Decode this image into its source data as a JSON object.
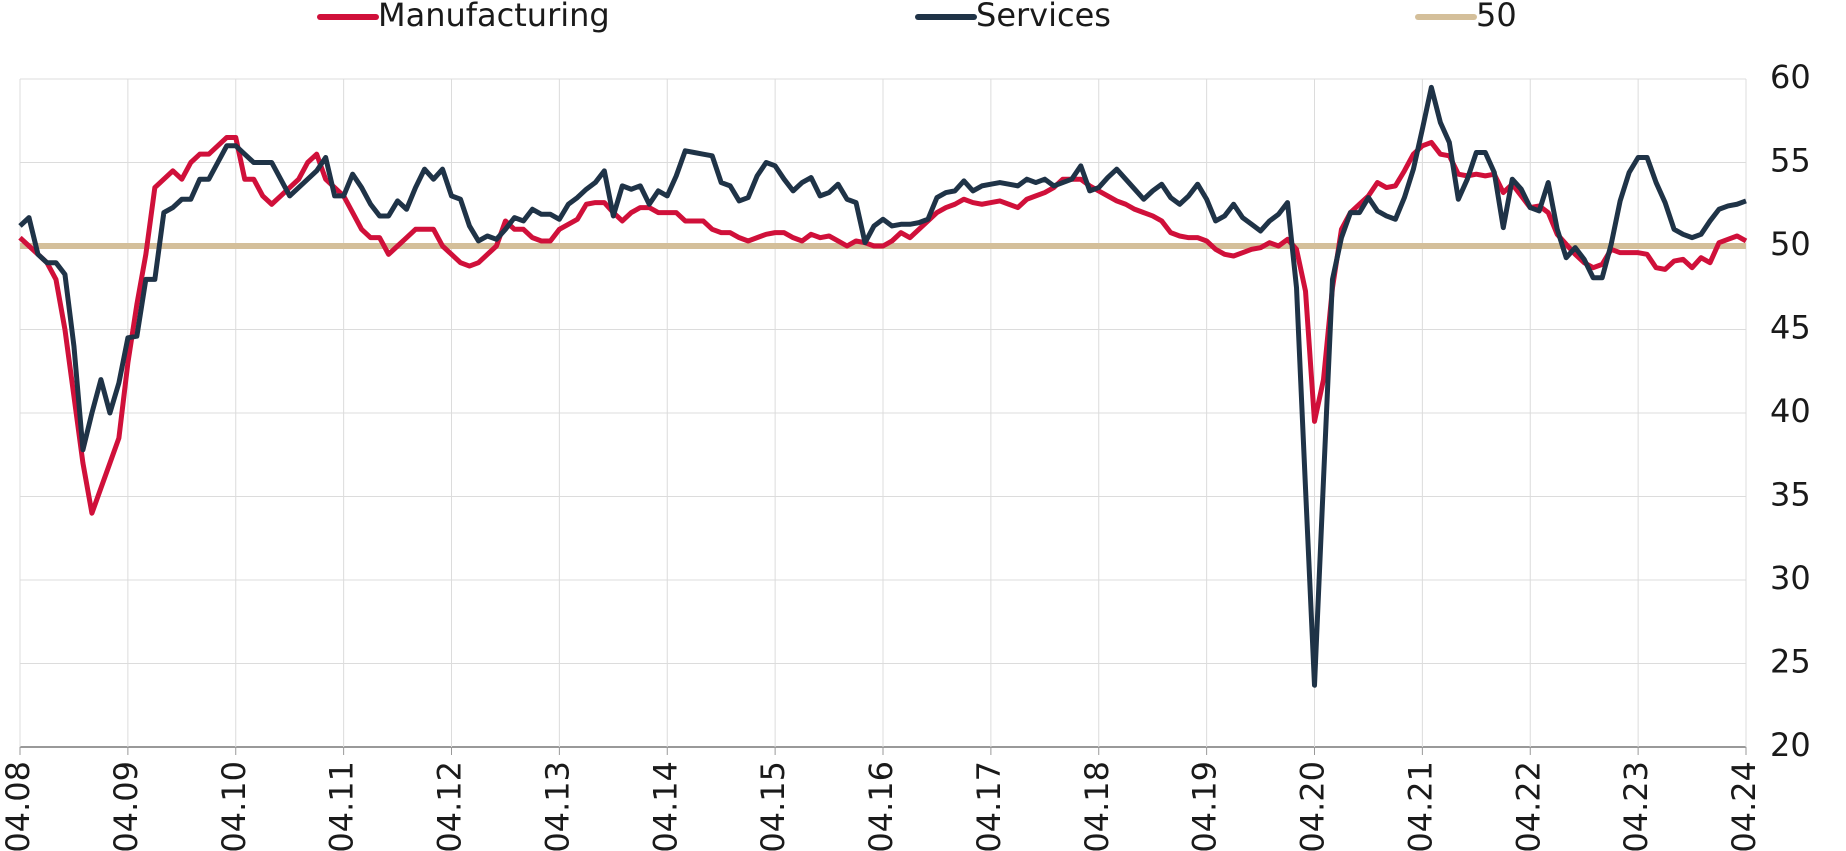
{
  "chart_data": {
    "type": "line",
    "categories": [
      "04.08",
      null,
      null,
      null,
      null,
      null,
      null,
      null,
      null,
      null,
      null,
      null,
      "04.09",
      null,
      null,
      null,
      null,
      null,
      null,
      null,
      null,
      null,
      null,
      null,
      "04.10",
      null,
      null,
      null,
      null,
      null,
      null,
      null,
      null,
      null,
      null,
      null,
      "04.11",
      null,
      null,
      null,
      null,
      null,
      null,
      null,
      null,
      null,
      null,
      null,
      "04.12",
      null,
      null,
      null,
      null,
      null,
      null,
      null,
      null,
      null,
      null,
      null,
      "04.13",
      null,
      null,
      null,
      null,
      null,
      null,
      null,
      null,
      null,
      null,
      null,
      "04.14",
      null,
      null,
      null,
      null,
      null,
      null,
      null,
      null,
      null,
      null,
      null,
      "04.15",
      null,
      null,
      null,
      null,
      null,
      null,
      null,
      null,
      null,
      null,
      null,
      "04.16",
      null,
      null,
      null,
      null,
      null,
      null,
      null,
      null,
      null,
      null,
      null,
      "04.17",
      null,
      null,
      null,
      null,
      null,
      null,
      null,
      null,
      null,
      null,
      null,
      "04.18",
      null,
      null,
      null,
      null,
      null,
      null,
      null,
      null,
      null,
      null,
      null,
      "04.19",
      null,
      null,
      null,
      null,
      null,
      null,
      null,
      null,
      null,
      null,
      null,
      "04.20",
      null,
      null,
      null,
      null,
      null,
      null,
      null,
      null,
      null,
      null,
      null,
      "04.21",
      null,
      null,
      null,
      null,
      null,
      null,
      null,
      null,
      null,
      null,
      null,
      "04.22",
      null,
      null,
      null,
      null,
      null,
      null,
      null,
      null,
      null,
      null,
      null,
      "04.23",
      null,
      null,
      null,
      null,
      null,
      null,
      null,
      null,
      null,
      null,
      null,
      "04.24"
    ],
    "series": [
      {
        "name": "Manufacturing",
        "color": "#d0103a",
        "values": [
          50.5,
          50,
          49.5,
          49,
          48,
          45,
          41,
          37,
          34,
          35.5,
          37,
          38.5,
          43,
          46.5,
          49.5,
          53.5,
          54,
          54.5,
          54,
          55,
          55.5,
          55.5,
          56,
          56.5,
          56.5,
          54,
          54,
          53,
          52.5,
          53,
          53.5,
          54,
          55,
          55.5,
          54,
          53.5,
          53,
          52,
          51,
          50.5,
          50.5,
          49.5,
          50,
          50.5,
          51,
          51,
          51,
          50,
          49.5,
          49,
          48.8,
          49,
          49.5,
          50,
          51.5,
          51,
          51,
          50.5,
          50.3,
          50.3,
          51,
          51.3,
          51.6,
          52.5,
          52.6,
          52.6,
          52,
          51.5,
          52,
          52.3,
          52.3,
          52,
          52,
          52,
          51.5,
          51.5,
          51.5,
          51,
          50.8,
          50.8,
          50.5,
          50.3,
          50.5,
          50.7,
          50.8,
          50.8,
          50.5,
          50.3,
          50.7,
          50.5,
          50.6,
          50.3,
          50,
          50.3,
          50.2,
          50,
          50,
          50.3,
          50.8,
          50.5,
          51,
          51.5,
          52,
          52.3,
          52.5,
          52.8,
          52.6,
          52.5,
          52.6,
          52.7,
          52.5,
          52.3,
          52.8,
          53,
          53.2,
          53.5,
          54,
          54,
          54,
          53.6,
          53.3,
          53,
          52.7,
          52.5,
          52.2,
          52,
          51.8,
          51.5,
          50.8,
          50.6,
          50.5,
          50.5,
          50.3,
          49.8,
          49.5,
          49.4,
          49.6,
          49.8,
          49.9,
          50.2,
          50,
          50.4,
          49.8,
          47.3,
          39.5,
          42,
          47.5,
          51,
          52,
          52.5,
          53,
          53.8,
          53.5,
          53.6,
          54.5,
          55.5,
          56,
          56.2,
          55.5,
          55.4,
          54.3,
          54.2,
          54.3,
          54.2,
          54.3,
          53.2,
          53.7,
          53,
          52.3,
          52.4,
          52,
          50.7,
          50.1,
          49.5,
          49,
          48.7,
          48.9,
          49.8,
          49.6,
          49.6,
          49.6,
          49.5,
          48.7,
          48.6,
          49.1,
          49.2,
          48.7,
          49.3,
          49,
          50.2,
          50.4,
          50.6,
          50.3
        ]
      },
      {
        "name": "Services",
        "color": "#1f3347",
        "values": [
          51.2,
          51.7,
          49.5,
          49,
          49,
          48.3,
          44,
          37.8,
          40,
          42,
          40,
          41.8,
          44.5,
          44.6,
          48,
          48,
          52,
          52.3,
          52.8,
          52.8,
          54,
          54,
          55,
          56,
          56,
          55.5,
          55,
          55,
          55,
          54,
          53,
          53.5,
          54,
          54.5,
          55.3,
          53,
          53,
          54.3,
          53.5,
          52.5,
          51.8,
          51.8,
          52.7,
          52.2,
          53.5,
          54.6,
          54,
          54.6,
          53,
          52.8,
          51.2,
          50.3,
          50.6,
          50.4,
          51,
          51.7,
          51.5,
          52.2,
          51.9,
          51.9,
          51.6,
          52.5,
          52.9,
          53.4,
          53.8,
          54.5,
          51.8,
          53.6,
          53.4,
          53.6,
          52.5,
          53.3,
          53,
          54.2,
          55.7,
          55.6,
          55.5,
          55.4,
          53.8,
          53.6,
          52.7,
          52.9,
          54.2,
          55,
          54.8,
          54,
          53.3,
          53.8,
          54.1,
          53,
          53.2,
          53.7,
          52.8,
          52.6,
          50.2,
          51.2,
          51.6,
          51.2,
          51.3,
          51.3,
          51.4,
          51.6,
          52.9,
          53.2,
          53.3,
          53.9,
          53.3,
          53.6,
          53.7,
          53.8,
          53.7,
          53.6,
          54,
          53.8,
          54,
          53.6,
          53.8,
          54,
          54.8,
          53.3,
          53.5,
          54.1,
          54.6,
          54,
          53.4,
          52.8,
          53.3,
          53.7,
          52.9,
          52.5,
          53,
          53.7,
          52.8,
          51.5,
          51.8,
          52.5,
          51.7,
          51.3,
          50.9,
          51.5,
          51.9,
          52.6,
          47.5,
          35.5,
          23.7,
          36,
          48,
          50.5,
          52,
          52,
          52.9,
          52.1,
          51.8,
          51.6,
          52.9,
          54.6,
          57,
          59.5,
          57.4,
          56.2,
          52.8,
          54,
          55.6,
          55.6,
          54.4,
          51.1,
          54,
          53.4,
          52.3,
          52.1,
          53.8,
          51,
          49.3,
          49.9,
          49.2,
          48.1,
          48.1,
          50.1,
          52.7,
          54.4,
          55.3,
          55.3,
          53.8,
          52.6,
          51,
          50.7,
          50.5,
          50.7,
          51.5,
          52.2,
          52.4,
          52.5,
          52.7
        ]
      }
    ],
    "reference_lines": [
      {
        "name": "50",
        "value": 50,
        "color": "#d4bf9a"
      }
    ],
    "ylim": [
      20,
      60
    ],
    "yticks": [
      20,
      25,
      30,
      35,
      40,
      45,
      50,
      55,
      60
    ],
    "grid": true,
    "legend": "top",
    "y_axis_side": "right"
  }
}
